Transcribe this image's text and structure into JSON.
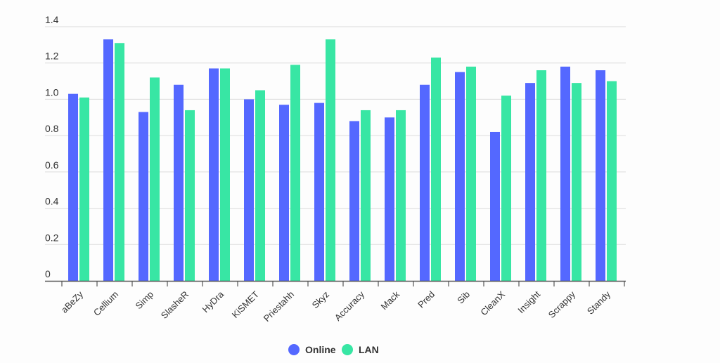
{
  "chart_data": {
    "type": "bar",
    "title": "",
    "xlabel": "",
    "ylabel": "",
    "ylim": [
      0,
      1.4
    ],
    "yticks": [
      "0",
      "0.2",
      "0.4",
      "0.6",
      "0.8",
      "1.0",
      "1.2",
      "1.4"
    ],
    "grid": true,
    "legend_position": "bottom",
    "categories": [
      "aBeZy",
      "Cellium",
      "Simp",
      "SlasheR",
      "HyDra",
      "KiSMET",
      "Priestahh",
      "Skyz",
      "Accuracy",
      "Mack",
      "Pred",
      "Sib",
      "CleanX",
      "Insight",
      "Scrappy",
      "Standy"
    ],
    "series": [
      {
        "name": "Online",
        "color": "#5468ff",
        "values": [
          1.03,
          1.33,
          0.93,
          1.08,
          1.17,
          1.0,
          0.97,
          0.98,
          0.88,
          0.9,
          1.08,
          1.15,
          0.82,
          1.09,
          1.18,
          1.16
        ]
      },
      {
        "name": "LAN",
        "color": "#38e6a4",
        "values": [
          1.01,
          1.31,
          1.12,
          0.94,
          1.17,
          1.05,
          1.19,
          1.33,
          0.94,
          0.94,
          1.23,
          1.18,
          1.02,
          1.16,
          1.09,
          1.1
        ]
      }
    ]
  }
}
